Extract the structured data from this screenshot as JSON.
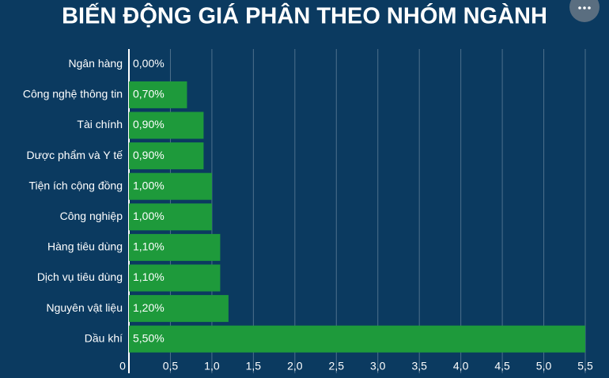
{
  "chart_data": {
    "type": "hbar",
    "title": "BIẾN ĐỘNG GIÁ PHÂN THEO NHÓM NGÀNH",
    "categories": [
      "Ngân hàng",
      "Công nghệ thông tin",
      "Tài chính",
      "Dược phẩm và Y tế",
      "Tiện ích cộng đồng",
      "Công nghiệp",
      "Hàng tiêu dùng",
      "Dịch vụ tiêu dùng",
      "Nguyên vật liệu",
      "Dầu khí"
    ],
    "values": [
      0,
      0.7,
      0.9,
      0.9,
      1.0,
      1.0,
      1.1,
      1.1,
      1.2,
      5.5
    ],
    "value_labels": [
      "0,00%",
      "0,70%",
      "0,90%",
      "0,90%",
      "1,00%",
      "1,00%",
      "1,10%",
      "1,10%",
      "1,20%",
      "5,50%"
    ],
    "color": "#1e9a3b",
    "xlim": [
      0,
      5.5
    ],
    "xticks": [
      0,
      {
        "value": 0.5,
        "label": "0,5"
      },
      {
        "value": 1,
        "label": "1,0"
      },
      {
        "value": 1.5,
        "label": "1,5"
      },
      {
        "value": 2,
        "label": "2,0"
      },
      {
        "value": 2.5,
        "label": "2,5"
      },
      {
        "value": 3,
        "label": "3,0"
      },
      {
        "value": 3.5,
        "label": "3,5"
      },
      {
        "value": 4,
        "label": "4,0"
      },
      {
        "value": 4.5,
        "label": "4,5"
      },
      {
        "value": 5,
        "label": "5,0"
      },
      {
        "value": 5.5,
        "label": "5,5"
      }
    ],
    "grid": true
  }
}
